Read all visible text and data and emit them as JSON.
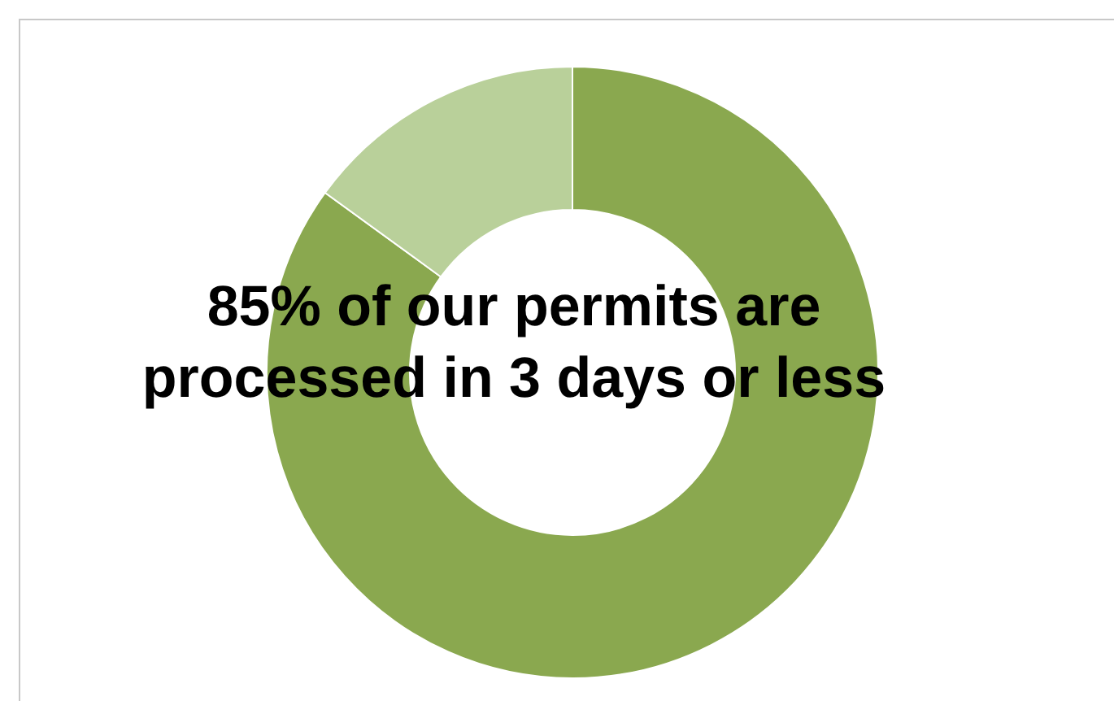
{
  "chart_data": {
    "type": "donut",
    "categories": [
      null,
      null
    ],
    "values": [
      85,
      15
    ],
    "colors": [
      "#8aa84f",
      "#b9d09a"
    ],
    "annotations": [
      "85% of our permits are processed in 3 days or less"
    ]
  }
}
